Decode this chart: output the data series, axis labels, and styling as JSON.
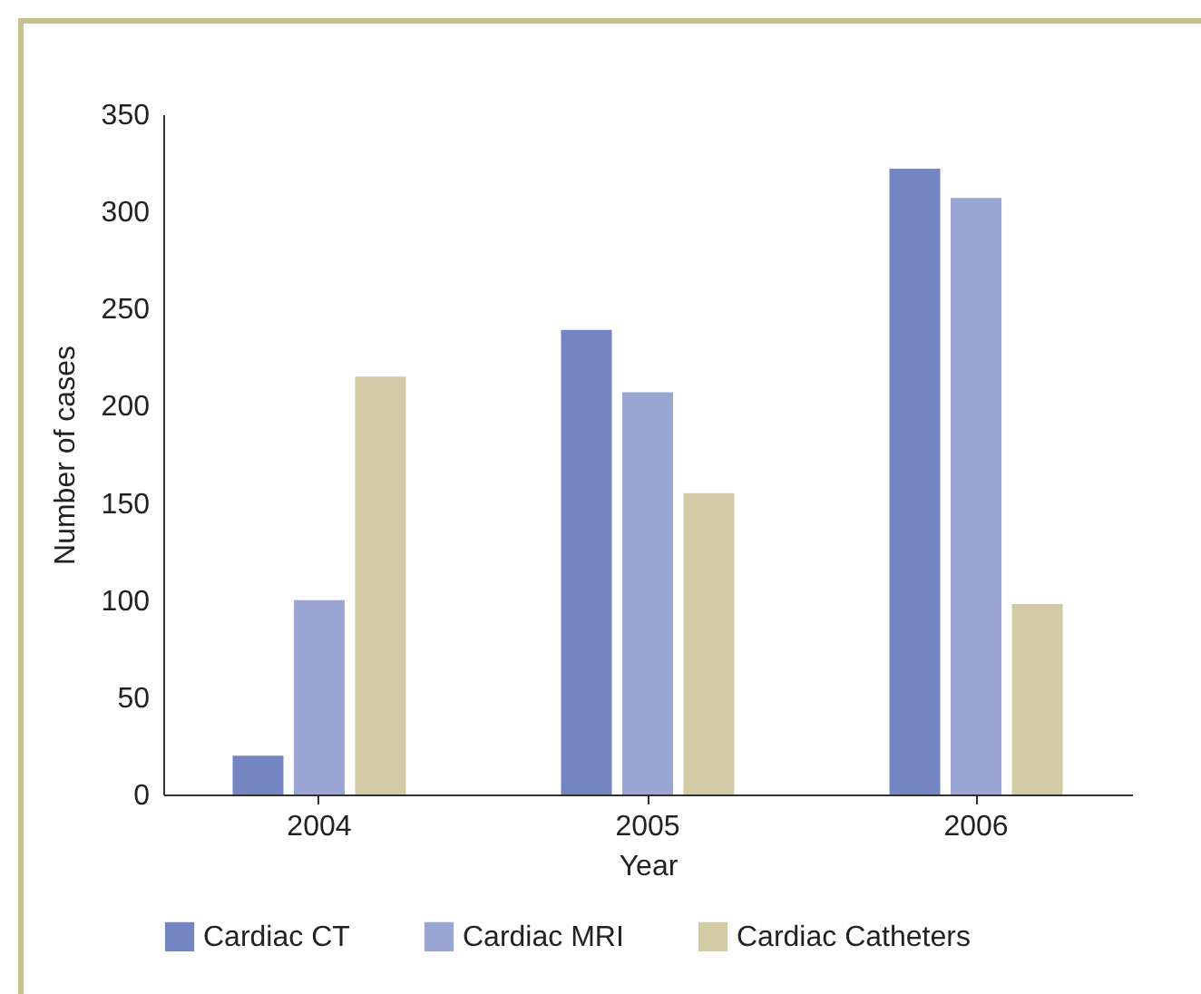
{
  "chart_data": {
    "type": "bar",
    "xlabel": "Year",
    "ylabel": "Number of cases",
    "categories": [
      "2004",
      "2005",
      "2006"
    ],
    "series": [
      {
        "name": "Cardiac CT",
        "color": "#7585c2",
        "values": [
          20,
          239,
          322
        ]
      },
      {
        "name": "Cardiac MRI",
        "color": "#9ba5d3",
        "values": [
          100,
          207,
          307
        ]
      },
      {
        "name": "Cardiac Catheters",
        "color": "#d3cba6",
        "values": [
          215,
          155,
          98
        ]
      }
    ],
    "ylim": [
      0,
      350
    ],
    "yticks": [
      0,
      50,
      100,
      150,
      200,
      250,
      300,
      350
    ],
    "grid": false,
    "legend": "bottom"
  }
}
